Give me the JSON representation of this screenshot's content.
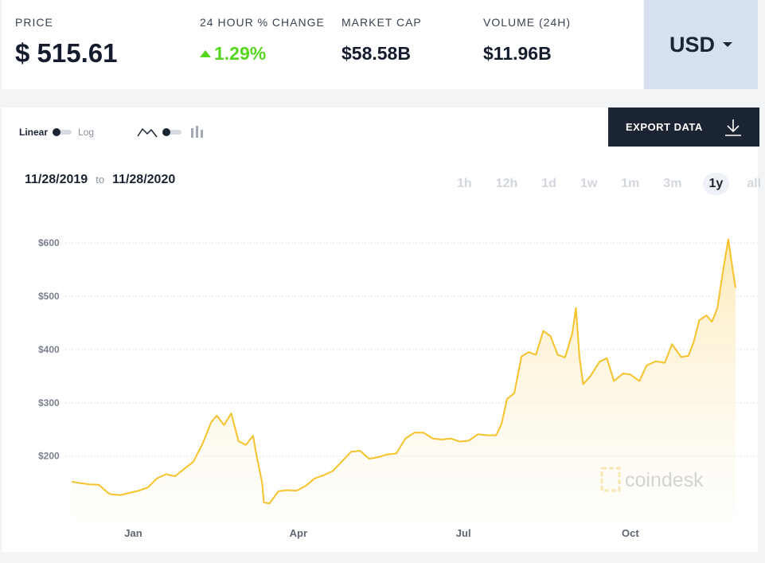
{
  "stats": [
    {
      "key": "price",
      "label": "PRICE",
      "value": "$ 515.61"
    },
    {
      "key": "change",
      "label": "24 HOUR % CHANGE",
      "value": "1.29%"
    },
    {
      "key": "mcap",
      "label": "MARKET CAP",
      "value": "$58.58B"
    },
    {
      "key": "vol",
      "label": "VOLUME (24H)",
      "value": "$11.96B"
    }
  ],
  "currency": "USD",
  "controls": {
    "linear_label": "Linear",
    "log_label": "Log",
    "export_label": "EXPORT DATA"
  },
  "range": {
    "from": "11/28/2019",
    "to_label": "to",
    "to": "11/28/2020"
  },
  "periods": [
    "1h",
    "12h",
    "1d",
    "1w",
    "1m",
    "3m",
    "1y",
    "all"
  ],
  "active_period": "1y",
  "watermark": "coindesk",
  "colors": {
    "line": "#f6c22b",
    "fill": "#fdf3d8",
    "dark": "#1b2433",
    "accent_green": "#56d61f"
  },
  "chart_data": {
    "type": "area",
    "x_start": "2019-11-28",
    "x_end": "2020-11-28",
    "x_ticks": [
      {
        "label": "Jan",
        "date": "2020-01-01"
      },
      {
        "label": "Apr",
        "date": "2020-04-01"
      },
      {
        "label": "Jul",
        "date": "2020-07-01"
      },
      {
        "label": "Oct",
        "date": "2020-10-01"
      }
    ],
    "y_ticks": [
      {
        "label": "$200",
        "value": 200
      },
      {
        "label": "$300",
        "value": 300
      },
      {
        "label": "$400",
        "value": 400
      },
      {
        "label": "$500",
        "value": 500
      },
      {
        "label": "$600",
        "value": 600
      }
    ],
    "ylim": [
      80,
      630
    ],
    "grid": true,
    "legend": "none",
    "points": [
      [
        "2019-11-28",
        152
      ],
      [
        "2019-12-03",
        149
      ],
      [
        "2019-12-08",
        147
      ],
      [
        "2019-12-13",
        146
      ],
      [
        "2019-12-18",
        131
      ],
      [
        "2019-12-20",
        128
      ],
      [
        "2019-12-25",
        127
      ],
      [
        "2019-12-30",
        131
      ],
      [
        "2020-01-04",
        135
      ],
      [
        "2020-01-09",
        141
      ],
      [
        "2020-01-14",
        158
      ],
      [
        "2020-01-19",
        166
      ],
      [
        "2020-01-24",
        162
      ],
      [
        "2020-01-29",
        176
      ],
      [
        "2020-02-03",
        189
      ],
      [
        "2020-02-08",
        222
      ],
      [
        "2020-02-13",
        264
      ],
      [
        "2020-02-16",
        276
      ],
      [
        "2020-02-20",
        258
      ],
      [
        "2020-02-24",
        280
      ],
      [
        "2020-02-28",
        228
      ],
      [
        "2020-03-03",
        221
      ],
      [
        "2020-03-07",
        238
      ],
      [
        "2020-03-09",
        200
      ],
      [
        "2020-03-12",
        150
      ],
      [
        "2020-03-13",
        113
      ],
      [
        "2020-03-16",
        111
      ],
      [
        "2020-03-21",
        134
      ],
      [
        "2020-03-26",
        136
      ],
      [
        "2020-03-31",
        135
      ],
      [
        "2020-04-05",
        144
      ],
      [
        "2020-04-10",
        158
      ],
      [
        "2020-04-15",
        164
      ],
      [
        "2020-04-20",
        172
      ],
      [
        "2020-04-25",
        190
      ],
      [
        "2020-04-30",
        208
      ],
      [
        "2020-05-05",
        210
      ],
      [
        "2020-05-10",
        195
      ],
      [
        "2020-05-15",
        198
      ],
      [
        "2020-05-20",
        203
      ],
      [
        "2020-05-25",
        205
      ],
      [
        "2020-05-30",
        233
      ],
      [
        "2020-06-04",
        244
      ],
      [
        "2020-06-09",
        244
      ],
      [
        "2020-06-14",
        233
      ],
      [
        "2020-06-19",
        231
      ],
      [
        "2020-06-24",
        233
      ],
      [
        "2020-06-29",
        227
      ],
      [
        "2020-07-04",
        229
      ],
      [
        "2020-07-09",
        241
      ],
      [
        "2020-07-14",
        239
      ],
      [
        "2020-07-19",
        239
      ],
      [
        "2020-07-22",
        260
      ],
      [
        "2020-07-25",
        307
      ],
      [
        "2020-07-29",
        318
      ],
      [
        "2020-08-02",
        387
      ],
      [
        "2020-08-06",
        395
      ],
      [
        "2020-08-10",
        390
      ],
      [
        "2020-08-14",
        435
      ],
      [
        "2020-08-18",
        425
      ],
      [
        "2020-08-22",
        390
      ],
      [
        "2020-08-26",
        385
      ],
      [
        "2020-08-30",
        430
      ],
      [
        "2020-09-01",
        478
      ],
      [
        "2020-09-03",
        385
      ],
      [
        "2020-09-05",
        335
      ],
      [
        "2020-09-09",
        350
      ],
      [
        "2020-09-14",
        377
      ],
      [
        "2020-09-18",
        384
      ],
      [
        "2020-09-22",
        341
      ],
      [
        "2020-09-27",
        355
      ],
      [
        "2020-10-01",
        353
      ],
      [
        "2020-10-06",
        341
      ],
      [
        "2020-10-10",
        370
      ],
      [
        "2020-10-15",
        378
      ],
      [
        "2020-10-20",
        375
      ],
      [
        "2020-10-24",
        410
      ],
      [
        "2020-10-29",
        386
      ],
      [
        "2020-11-02",
        388
      ],
      [
        "2020-11-05",
        415
      ],
      [
        "2020-11-08",
        455
      ],
      [
        "2020-11-12",
        464
      ],
      [
        "2020-11-15",
        452
      ],
      [
        "2020-11-18",
        478
      ],
      [
        "2020-11-21",
        545
      ],
      [
        "2020-11-24",
        607
      ],
      [
        "2020-11-26",
        560
      ],
      [
        "2020-11-28",
        516
      ]
    ]
  }
}
